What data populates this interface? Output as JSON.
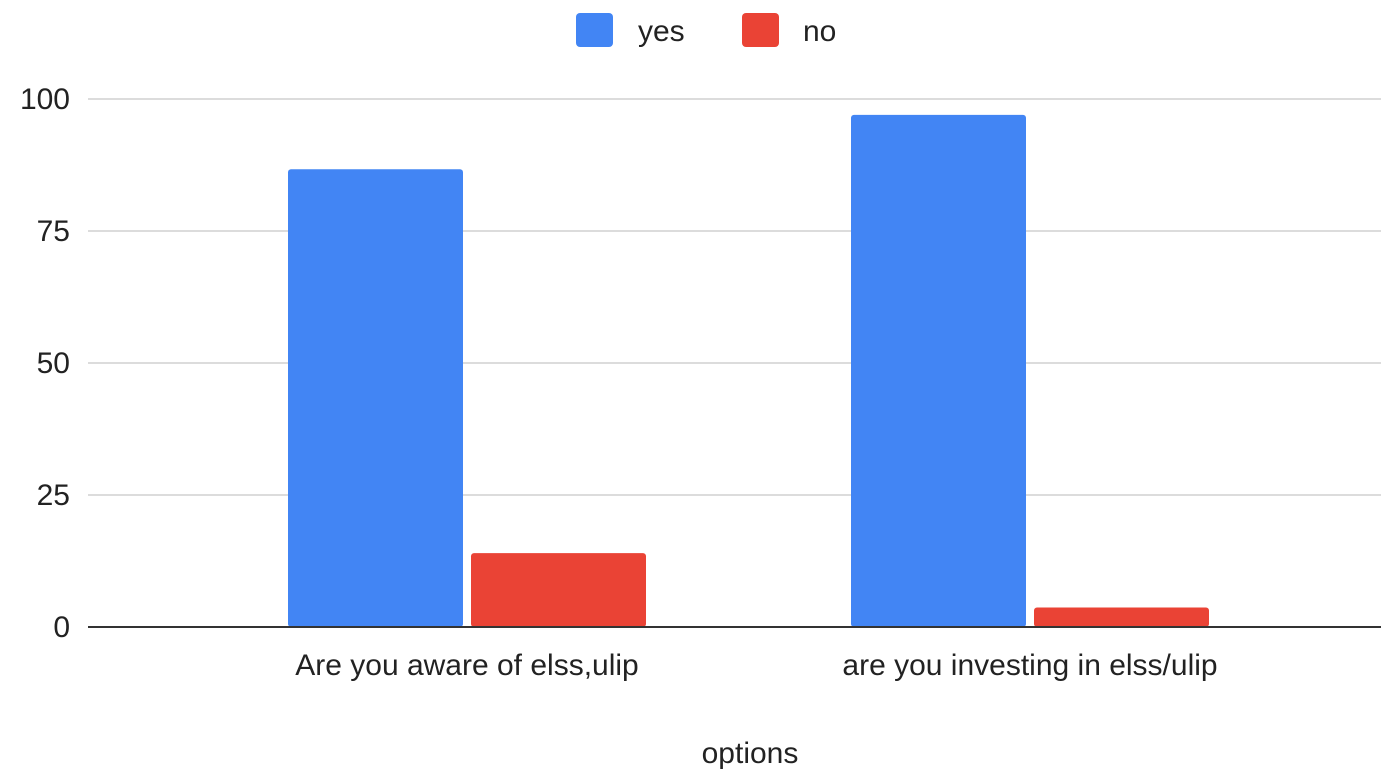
{
  "chart_data": {
    "type": "bar",
    "categories": [
      "Are you aware of elss,ulip",
      "are you investing in elss/ulip"
    ],
    "series": [
      {
        "name": "yes",
        "values": [
          86.7,
          97
        ],
        "color": "#4285f4"
      },
      {
        "name": "no",
        "values": [
          14,
          3.7
        ],
        "color": "#ea4335"
      }
    ],
    "xlabel": "options",
    "ylabel": "",
    "ylim": [
      0,
      100
    ],
    "yticks": [
      "0",
      "25",
      "50",
      "75",
      "100"
    ],
    "grid": true,
    "legend_position": "top-center"
  }
}
